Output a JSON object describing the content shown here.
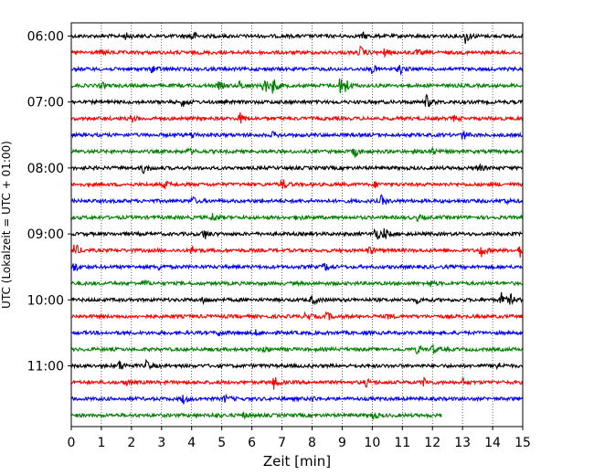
{
  "chart_data": {
    "type": "line",
    "title": "",
    "xlabel": "Zeit  [min]",
    "ylabel": "UTC (Lokalzeit = UTC + 01:00)",
    "xlim": [
      0,
      15
    ],
    "x_ticks": [
      0,
      1,
      2,
      3,
      4,
      5,
      6,
      7,
      8,
      9,
      10,
      11,
      12,
      13,
      14,
      15
    ],
    "y_ticks": [
      "06:00",
      "07:00",
      "08:00",
      "09:00",
      "10:00",
      "11:00"
    ],
    "grid": "vertical dotted at each minute",
    "color_cycle": [
      "#000000",
      "#ff0000",
      "#0000ff",
      "#008000"
    ],
    "rows": [
      {
        "start": "06:00",
        "color": "#000000",
        "end_min": 15,
        "events": [
          [
            1.8,
            0.35
          ],
          [
            4.0,
            0.7
          ],
          [
            9.7,
            0.35
          ],
          [
            13.1,
            0.9
          ]
        ]
      },
      {
        "start": "06:15",
        "color": "#ff0000",
        "end_min": 15,
        "events": [
          [
            1.0,
            0.3
          ],
          [
            9.6,
            0.7
          ],
          [
            10.4,
            0.4
          ],
          [
            11.5,
            0.3
          ]
        ]
      },
      {
        "start": "06:30",
        "color": "#0000ff",
        "end_min": 15,
        "events": [
          [
            2.7,
            0.5
          ],
          [
            10.0,
            0.5
          ],
          [
            10.9,
            0.6
          ]
        ]
      },
      {
        "start": "06:45",
        "color": "#008000",
        "end_min": 15,
        "events": [
          [
            1.0,
            0.3
          ],
          [
            4.9,
            0.4
          ],
          [
            5.6,
            0.5
          ],
          [
            6.4,
            1.1
          ],
          [
            6.7,
            0.9
          ],
          [
            8.9,
            1.2
          ],
          [
            9.1,
            0.8
          ]
        ]
      },
      {
        "start": "07:00",
        "color": "#000000",
        "end_min": 15,
        "events": [
          [
            3.7,
            0.5
          ],
          [
            11.8,
            0.8
          ]
        ]
      },
      {
        "start": "07:15",
        "color": "#ff0000",
        "end_min": 15,
        "events": [
          [
            2.0,
            0.4
          ],
          [
            5.6,
            0.6
          ],
          [
            12.7,
            0.3
          ]
        ]
      },
      {
        "start": "07:30",
        "color": "#0000ff",
        "end_min": 15,
        "events": [
          [
            4.0,
            0.4
          ],
          [
            6.7,
            0.3
          ],
          [
            13.0,
            0.6
          ]
        ]
      },
      {
        "start": "07:45",
        "color": "#008000",
        "end_min": 15,
        "events": [
          [
            3.9,
            0.3
          ],
          [
            9.4,
            0.7
          ],
          [
            11.9,
            0.6
          ]
        ]
      },
      {
        "start": "08:00",
        "color": "#000000",
        "end_min": 15,
        "events": [
          [
            2.4,
            0.6
          ],
          [
            13.5,
            0.5
          ]
        ]
      },
      {
        "start": "08:15",
        "color": "#ff0000",
        "end_min": 15,
        "events": [
          [
            3.1,
            0.4
          ],
          [
            7.0,
            0.7
          ],
          [
            10.1,
            0.3
          ]
        ]
      },
      {
        "start": "08:30",
        "color": "#0000ff",
        "end_min": 15,
        "events": [
          [
            4.0,
            0.5
          ],
          [
            10.3,
            0.6
          ],
          [
            14.4,
            0.3
          ]
        ]
      },
      {
        "start": "08:45",
        "color": "#008000",
        "end_min": 15,
        "events": [
          [
            4.7,
            0.5
          ],
          [
            7.5,
            0.3
          ],
          [
            11.5,
            0.3
          ]
        ]
      },
      {
        "start": "09:00",
        "color": "#000000",
        "end_min": 15,
        "events": [
          [
            4.4,
            0.7
          ],
          [
            10.1,
            0.9
          ],
          [
            10.4,
            0.6
          ]
        ]
      },
      {
        "start": "09:15",
        "color": "#ff0000",
        "end_min": 15,
        "events": [
          [
            0.1,
            0.9
          ],
          [
            4.0,
            0.5
          ],
          [
            9.9,
            0.5
          ],
          [
            13.6,
            0.8
          ],
          [
            14.9,
            0.8
          ]
        ]
      },
      {
        "start": "09:30",
        "color": "#0000ff",
        "end_min": 15,
        "events": [
          [
            0.1,
            0.6
          ],
          [
            2.9,
            0.3
          ],
          [
            8.4,
            0.5
          ]
        ]
      },
      {
        "start": "09:45",
        "color": "#008000",
        "end_min": 15,
        "events": [
          [
            2.4,
            0.4
          ],
          [
            11.9,
            0.4
          ]
        ]
      },
      {
        "start": "10:00",
        "color": "#000000",
        "end_min": 15,
        "events": [
          [
            4.4,
            0.4
          ],
          [
            8.0,
            0.6
          ],
          [
            11.5,
            0.3
          ],
          [
            14.3,
            0.8
          ],
          [
            14.6,
            0.5
          ]
        ]
      },
      {
        "start": "10:15",
        "color": "#ff0000",
        "end_min": 15,
        "events": [
          [
            7.8,
            0.5
          ],
          [
            8.5,
            0.5
          ],
          [
            10.5,
            0.3
          ]
        ]
      },
      {
        "start": "10:30",
        "color": "#0000ff",
        "end_min": 15,
        "events": [
          [
            4.9,
            0.4
          ],
          [
            6.1,
            0.3
          ]
        ]
      },
      {
        "start": "10:45",
        "color": "#008000",
        "end_min": 15,
        "events": [
          [
            6.4,
            0.3
          ],
          [
            11.5,
            0.5
          ],
          [
            12.0,
            0.5
          ]
        ]
      },
      {
        "start": "11:00",
        "color": "#000000",
        "end_min": 15,
        "events": [
          [
            1.6,
            0.6
          ],
          [
            2.5,
            0.6
          ],
          [
            14.1,
            0.6
          ]
        ]
      },
      {
        "start": "11:15",
        "color": "#ff0000",
        "end_min": 15,
        "events": [
          [
            1.8,
            0.4
          ],
          [
            6.7,
            0.9
          ],
          [
            9.8,
            0.4
          ],
          [
            11.7,
            0.5
          ],
          [
            13.0,
            0.4
          ]
        ]
      },
      {
        "start": "11:30",
        "color": "#0000ff",
        "end_min": 15,
        "events": [
          [
            3.7,
            0.6
          ],
          [
            5.1,
            0.4
          ],
          [
            8.0,
            0.3
          ]
        ]
      },
      {
        "start": "11:45",
        "color": "#008000",
        "end_min": 12.3,
        "events": [
          [
            4.7,
            0.3
          ],
          [
            5.7,
            0.3
          ],
          [
            10.0,
            0.5
          ]
        ]
      }
    ]
  }
}
